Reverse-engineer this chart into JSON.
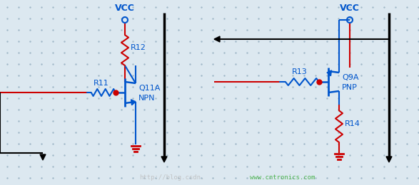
{
  "bg_color": "#dce8f0",
  "dot_color": "#a0b8c8",
  "blue": "#0055cc",
  "red": "#cc0000",
  "black": "#000000",
  "vcc_label": "VCC",
  "r11_label": "R11",
  "r12_label": "R12",
  "q11_label": "Q11A",
  "npn_label": "NPN",
  "r13_label": "R13",
  "r14_label": "R14",
  "q9_label": "Q9A",
  "pnp_label": "PNP",
  "watermark1": "http://blog.csdn.",
  "watermark2": "www.cntronics.com"
}
